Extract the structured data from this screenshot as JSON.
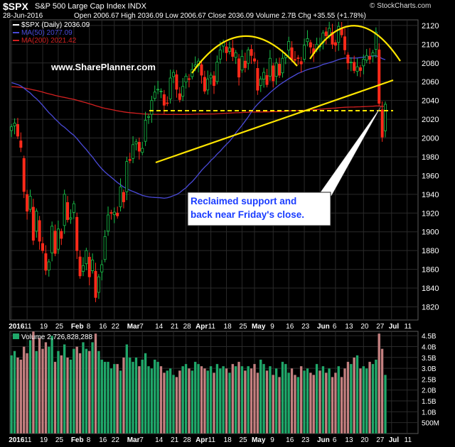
{
  "header": {
    "symbol": "$SPX",
    "description": "S&P 500 Large Cap Index  INDX",
    "date": "28-Jun-2016",
    "ohlc": "Open 2006.67  High 2036.09  Low 2006.67  Close 2036.09  Volume 2.7B  Chg +35.55 (+1.78%)",
    "source": "© StockCharts.com"
  },
  "chart_data": {
    "type": "candlestick",
    "legend": [
      {
        "label": "$SPX (Daily) 2036.09",
        "color": "#ffffff"
      },
      {
        "label": "MA(50) 2077.09",
        "color": "#4a4ad8"
      },
      {
        "label": "MA(200) 2021.42",
        "color": "#d42020"
      }
    ],
    "watermark": "www.SharePlanner.com",
    "annotation": "Reclaimed support and back near Friday's close.",
    "annotation_lines": [
      "Reclaimed support and",
      "back near Friday's close."
    ],
    "y_ticks": [
      1820,
      1840,
      1860,
      1880,
      1900,
      1920,
      1940,
      1960,
      1980,
      2000,
      2020,
      2040,
      2060,
      2080,
      2100,
      2120
    ],
    "ylim": [
      1806,
      2126
    ],
    "x_labels": [
      {
        "i": 0,
        "text": "2016"
      },
      {
        "i": 5,
        "text": "11"
      },
      {
        "i": 10,
        "text": "19"
      },
      {
        "i": 15,
        "text": "25"
      },
      {
        "i": 20,
        "text": "Feb"
      },
      {
        "i": 25,
        "text": "8"
      },
      {
        "i": 29,
        "text": "16"
      },
      {
        "i": 33,
        "text": "22"
      },
      {
        "i": 38,
        "text": "Mar"
      },
      {
        "i": 42,
        "text": "7"
      },
      {
        "i": 47,
        "text": "14"
      },
      {
        "i": 52,
        "text": "21"
      },
      {
        "i": 56,
        "text": "28"
      },
      {
        "i": 60,
        "text": "Apr"
      },
      {
        "i": 64,
        "text": "11"
      },
      {
        "i": 69,
        "text": "18"
      },
      {
        "i": 74,
        "text": "25"
      },
      {
        "i": 78,
        "text": "May"
      },
      {
        "i": 84,
        "text": "9"
      },
      {
        "i": 89,
        "text": "16"
      },
      {
        "i": 94,
        "text": "23"
      },
      {
        "i": 99,
        "text": "Jun"
      },
      {
        "i": 104,
        "text": "6"
      },
      {
        "i": 108,
        "text": "13"
      },
      {
        "i": 113,
        "text": "20"
      },
      {
        "i": 118,
        "text": "27"
      },
      {
        "i": 122,
        "text": "Jul"
      },
      {
        "i": 127,
        "text": "11"
      }
    ],
    "closes": [
      2012,
      2016,
      2002,
      1990,
      1943,
      1922,
      1938,
      1891,
      1922,
      1890,
      1880,
      1859,
      1868,
      1906,
      1877,
      1903,
      1893,
      1940,
      1913,
      1915,
      1930,
      1880,
      1853,
      1864,
      1880,
      1852,
      1870,
      1830,
      1852,
      1865,
      1895,
      1918,
      1920,
      1921,
      1917,
      1948,
      1932,
      1975,
      1976,
      1993,
      1996,
      1986,
      1989,
      2019,
      2023,
      2040,
      2049,
      2052,
      2050,
      2035,
      2037,
      2064,
      2070,
      2052,
      2041,
      2055,
      2066,
      2063,
      2073,
      2078,
      2082,
      2067,
      2050,
      2063,
      2067,
      2056,
      2081,
      2094,
      2102,
      2091,
      2096,
      2087,
      2091,
      2065,
      2087,
      2075,
      2094,
      2088,
      2082,
      2051,
      2063,
      2070,
      2057,
      2085,
      2061,
      2080,
      2067,
      2085,
      2088,
      2103,
      2084,
      2083,
      2085,
      2079,
      2099,
      2106,
      2097,
      2090,
      2100,
      2098,
      2112,
      2109,
      2117,
      2100,
      2099,
      2119,
      2110,
      2094,
      2080,
      2081,
      2072,
      2076,
      2072,
      2084,
      2088,
      2084,
      2091,
      2113,
      2037,
      2001,
      2036
    ],
    "volume_label": "Volume 2,726,828,288",
    "volume_ticks": [
      {
        "v": 0.5,
        "text": "500M"
      },
      {
        "v": 1.0,
        "text": "1.0B"
      },
      {
        "v": 1.5,
        "text": "1.5B"
      },
      {
        "v": 2.0,
        "text": "2.0B"
      },
      {
        "v": 2.5,
        "text": "2.5B"
      },
      {
        "v": 3.0,
        "text": "3.0B"
      },
      {
        "v": 3.5,
        "text": "3.5B"
      },
      {
        "v": 4.0,
        "text": "4.0B"
      },
      {
        "v": 4.5,
        "text": "4.5B"
      }
    ],
    "volume_max": 4.7,
    "volumes": [
      3.6,
      3.8,
      3.5,
      3.4,
      4.0,
      3.7,
      4.3,
      4.7,
      3.8,
      4.4,
      3.9,
      4.2,
      4.0,
      4.5,
      3.3,
      3.8,
      3.6,
      4.1,
      3.5,
      3.4,
      3.9,
      4.0,
      3.7,
      4.2,
      3.9,
      3.8,
      4.2,
      4.6,
      3.8,
      3.4,
      3.3,
      3.3,
      3.0,
      3.2,
      3.2,
      2.9,
      3.5,
      4.1,
      3.5,
      3.3,
      3.5,
      3.1,
      3.4,
      3.7,
      3.1,
      3.0,
      3.4,
      3.3,
      3.1,
      2.8,
      2.9,
      3.0,
      2.7,
      2.6,
      2.9,
      3.1,
      3.2,
      3.0,
      2.9,
      3.3,
      3.2,
      3.1,
      3.0,
      2.9,
      3.1,
      2.8,
      3.2,
      3.0,
      3.1,
      3.0,
      2.8,
      3.2,
      3.1,
      3.3,
      3.1,
      2.9,
      3.1,
      3.0,
      3.2,
      2.8,
      3.4,
      3.2,
      2.9,
      3.1,
      2.7,
      3.0,
      2.6,
      3.3,
      3.2,
      2.8,
      3.0,
      2.7,
      2.6,
      3.1,
      2.9,
      3.0,
      2.8,
      2.7,
      3.2,
      2.9,
      3.1,
      2.8,
      3.0,
      2.6,
      2.8,
      3.1,
      2.6,
      3.0,
      3.3,
      3.2,
      3.5,
      3.6,
      3.0,
      3.1,
      3.0,
      3.3,
      3.2,
      3.4,
      4.6,
      3.9,
      2.7
    ]
  }
}
